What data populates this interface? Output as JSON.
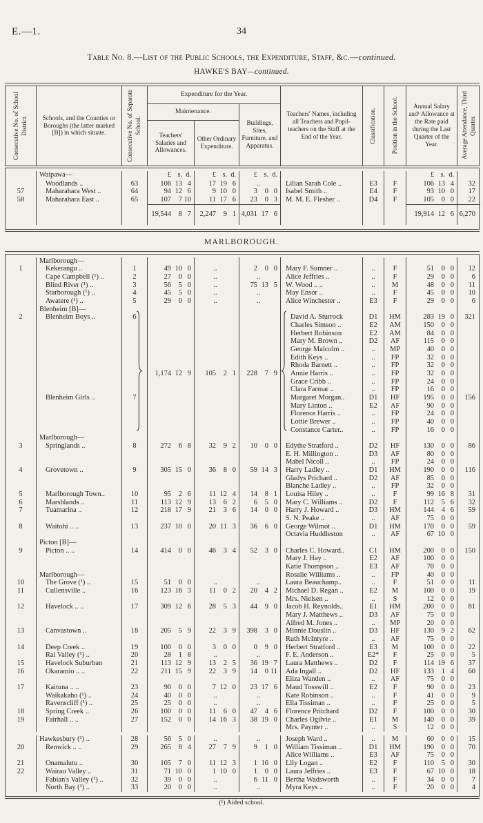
{
  "page": {
    "doc_ref": "E.—1.",
    "page_number": "34",
    "title_main": "Table No. 8.—List of the Public Schools, the Expenditure, Staff, &c.—",
    "title_cont": "continued.",
    "subtitle_region": "HAWKE'S BAY",
    "subtitle_cont": "—continued.",
    "section_title": "MARLBOROUGH.",
    "footnote": "(¹) Aided school."
  },
  "headers": {
    "col_district": "Consecutive No. of School District.",
    "col_school": "Schools, and the Counties or Boroughs (the latter marked [B]) in which situate.",
    "col_school_no": "Consecutive No. of Separate School.",
    "col_expenditure": "Expenditure for the Year.",
    "col_maintenance": "Maintenance.",
    "col_salaries": "Teachers' Salaries and Allowances.",
    "col_other": "Other Ordinary Expenditure.",
    "col_buildings": "Buildings, Sites, Furniture, and Apparatus.",
    "col_teachers": "Teachers' Names, including all Teachers and Pupil-teachers on the Staff at the End of the Year.",
    "col_classification": "Classification.",
    "col_position": "Position in the School.",
    "col_salary": "Annual Salary and¹ Allowance at the Rate paid during the Last Quarter of the Year.",
    "col_attendance": "Average Attendance, Third Quarter."
  },
  "hawkes_bay": {
    "rows": [
      [
        "",
        "Waipawa—",
        "",
        "£ s. d.",
        "£ s. d.",
        "£ s. d.",
        "",
        "",
        "",
        "£ s. d.",
        "",
        "mh g"
      ],
      [
        "",
        "Woodlands ..",
        "63",
        "106 13 4",
        "17 19 6",
        "..",
        "Lilian Sarah Cole ..",
        "E3",
        "F",
        "106 13 4",
        "32",
        ""
      ],
      [
        "57",
        "Maharahara West ..",
        "64",
        "94 12 6",
        "9 10 0",
        "3 0 0",
        "Isabel Smith ..",
        "E4",
        "F",
        "93 10 0",
        "17",
        ""
      ],
      [
        "58",
        "Maharahara East ..",
        "65",
        "107 7 10",
        "11 17 6",
        "23 0 3",
        "M. M. E. Flesher ..",
        "D4",
        "F",
        "105 0 0",
        "22",
        ""
      ],
      [
        "",
        "",
        "",
        "19,544 8 7",
        "2,247 9 1",
        "4,031 17 6",
        "",
        "",
        "",
        "19,914 12 6",
        "6,270",
        "t"
      ]
    ]
  },
  "marlborough": {
    "rows": [
      [
        "",
        "Marlborough—",
        "",
        "",
        "",
        "",
        "",
        "",
        "",
        "",
        "",
        "g"
      ],
      [
        "1",
        "Kekerangu ..",
        "1",
        "49 10 0",
        "..",
        "2 0 0",
        "Mary F. Sumner ..",
        "..",
        "F",
        "51 0 0",
        "12",
        ""
      ],
      [
        "",
        "Cape Campbell (¹) ..",
        "2",
        "27 0 0",
        "..",
        "..",
        "Alice Jeffries ..",
        "..",
        "F",
        "29 0 0",
        "6",
        ""
      ],
      [
        "",
        "Blind River (¹) ..",
        "3",
        "56 5 0",
        "..",
        "75 13 5",
        "W. Wood .. ..",
        "..",
        "M",
        "48 0 0",
        "11",
        ""
      ],
      [
        "",
        "Starborough (¹) ..",
        "4",
        "45 5 0",
        "..",
        "..",
        "May Ensor ..",
        "..",
        "F",
        "45 0 0",
        "10",
        ""
      ],
      [
        "",
        "Awatere (¹) ..",
        "5",
        "29 0 0",
        "..",
        "..",
        "Alice Winchester ..",
        "E3",
        "F",
        "29 0 0",
        "6",
        ""
      ],
      [
        "",
        "Blenheim [B]—",
        "",
        "",
        "",
        "",
        "",
        "",
        "",
        "",
        "",
        "g"
      ],
      [
        "2",
        "Blenheim Boys ..",
        "6",
        "",
        "",
        "",
        "David A. Sturrock",
        "D1",
        "HM",
        "283 19 0",
        "321",
        "b"
      ],
      [
        "",
        "",
        "",
        "",
        "",
        "",
        "Charles Simson ..",
        "E2",
        "AM",
        "150 0 0",
        "",
        "b"
      ],
      [
        "",
        "",
        "",
        "",
        "",
        "",
        "Herbert Robinson",
        "E2",
        "AM",
        "84 0 0",
        "",
        "b"
      ],
      [
        "",
        "",
        "",
        "",
        "",
        "",
        "Mary M. Brown ..",
        "D2",
        "AF",
        "115 0 0",
        "",
        "b"
      ],
      [
        "",
        "",
        "",
        "",
        "",
        "",
        "George Malcolm ..",
        "..",
        "MP",
        "40 0 0",
        "",
        "b"
      ],
      [
        "",
        "",
        "",
        "",
        "",
        "",
        "Edith Keys ..",
        "..",
        "FP",
        "32 0 0",
        "",
        "b"
      ],
      [
        "",
        "",
        "",
        "",
        "",
        "",
        "Rhoda Barnett ..",
        "..",
        "FP",
        "32 0 0",
        "",
        "b"
      ],
      [
        "",
        "",
        "",
        "1,174 12 9",
        "105 2 1",
        "228 7 9",
        "Annie Harris ..",
        "..",
        "FP",
        "32 0 0",
        "",
        "b"
      ],
      [
        "",
        "",
        "",
        "",
        "",
        "",
        "Grace Cribb ..",
        "..",
        "FP",
        "24 0 0",
        "",
        "b"
      ],
      [
        "",
        "",
        "",
        "",
        "",
        "",
        "Clara Farmar ..",
        "..",
        "FP",
        "16 0 0",
        "",
        "b"
      ],
      [
        "",
        "Blenheim Girls ..",
        "7",
        "",
        "",
        "",
        "Margaret Morgan..",
        "D1",
        "HF",
        "195 0 0",
        "156",
        "b"
      ],
      [
        "",
        "",
        "",
        "",
        "",
        "",
        "Mary Linton ..",
        "E2",
        "AF",
        "90 0 0",
        "",
        "b"
      ],
      [
        "",
        "",
        "",
        "",
        "",
        "",
        "Florence Harris ..",
        "..",
        "FP",
        "24 0 0",
        "",
        "b"
      ],
      [
        "",
        "",
        "",
        "",
        "",
        "",
        "Lottie Brewer ..",
        "..",
        "FP",
        "40 0 0",
        "",
        "b"
      ],
      [
        "",
        "",
        "",
        "",
        "",
        "",
        "Constance Carter..",
        "..",
        "FP",
        "16 0 0",
        "",
        "b"
      ],
      [
        "",
        "Marlborough—",
        "",
        "",
        "",
        "",
        "",
        "",
        "",
        "",
        "",
        "g"
      ],
      [
        "3",
        "Springlands ..",
        "8",
        "272 6 8",
        "32 9 2",
        "10 0 0",
        "Edythe Stratford ..",
        "D2",
        "HF",
        "130 0 0",
        "86",
        ""
      ],
      [
        "",
        "",
        "",
        "",
        "",
        "",
        "E. H. Millington ..",
        "D3",
        "AF",
        "80 0 0",
        "",
        ""
      ],
      [
        "",
        "",
        "",
        "",
        "",
        "",
        "Mabel Nicoll ..",
        "..",
        "FP",
        "24 0 0",
        "",
        ""
      ],
      [
        "4",
        "Grovetown ..",
        "9",
        "305 15 0",
        "36 8 0",
        "59 14 3",
        "Harry Ladley ..",
        "D1",
        "HM",
        "190 0 0",
        "116",
        ""
      ],
      [
        "",
        "",
        "",
        "",
        "",
        "",
        "Gladys Prichard ..",
        "D2",
        "AF",
        "85 0 0",
        "",
        ""
      ],
      [
        "",
        "",
        "",
        "",
        "",
        "",
        "Blanche Ladley ..",
        "..",
        "FP",
        "32 0 0",
        "",
        ""
      ],
      [
        "5",
        "Marlborough Town..",
        "10",
        "95 2 6",
        "11 12 4",
        "14 8 1",
        "Louisa Hiley ..",
        "..",
        "F",
        "99 16 8",
        "31",
        ""
      ],
      [
        "6",
        "Marshlands ..",
        "11",
        "113 12 9",
        "13 6 2",
        "6 5 0",
        "Mary C. Williams ..",
        "D2",
        "F",
        "112 5 6",
        "32",
        ""
      ],
      [
        "7",
        "Tuamarina ..",
        "12",
        "218 17 9",
        "21 3 6",
        "14 0 0",
        "Harry J. Howard ..",
        "D3",
        "HM",
        "144 4 6",
        "59",
        ""
      ],
      [
        "",
        "",
        "",
        "",
        "",
        "",
        "S. N. Peake ..",
        "..",
        "AF",
        "75 0 0",
        "",
        ""
      ],
      [
        "8",
        "Waitohi .. ..",
        "13",
        "237 10 0",
        "20 11 3",
        "36 6 0",
        "George Wilmot ..",
        "D1",
        "HM",
        "170 0 0",
        "59",
        ""
      ],
      [
        "",
        "",
        "",
        "",
        "",
        "",
        "Octavia Huddleston",
        "..",
        "AF",
        "67 10 0",
        "",
        ""
      ],
      [
        "",
        "Picton [B]—",
        "",
        "",
        "",
        "",
        "",
        "",
        "",
        "",
        "",
        "g"
      ],
      [
        "9",
        "Picton .. ..",
        "14",
        "414 0 0",
        "46 3 4",
        "52 3 0",
        "Charles C. Howard..",
        "C1",
        "HM",
        "200 0 0",
        "150",
        ""
      ],
      [
        "",
        "",
        "",
        "",
        "",
        "",
        "Mary J. Hay ..",
        "E2",
        "AF",
        "100 0 0",
        "",
        ""
      ],
      [
        "",
        "",
        "",
        "",
        "",
        "",
        "Katie Thompson ..",
        "E3",
        "AF",
        "70 0 0",
        "",
        ""
      ],
      [
        "",
        "Marlborough—",
        "",
        "",
        "",
        "",
        "Rosalie Williams ..",
        "..",
        "FP",
        "40 0 0",
        "",
        "g"
      ],
      [
        "10",
        "The Grove (¹) ..",
        "15",
        "51 0 0",
        "..",
        "..",
        "Laura Beauchamp..",
        "..",
        "F",
        "51 0 0",
        "11",
        ""
      ],
      [
        "11",
        "Cullensville ..",
        "16",
        "123 16 3",
        "11 0 2",
        "20 4 2",
        "Michael D. Regan ..",
        "E2",
        "M",
        "100 0 0",
        "19",
        ""
      ],
      [
        "",
        "",
        "",
        "",
        "",
        "",
        "Mrs. Nielsen ..",
        "..",
        "S",
        "12 0 0",
        "",
        ""
      ],
      [
        "12",
        "Havelock .. ..",
        "17",
        "309 12 6",
        "28 5 3",
        "44 9 0",
        "Jacob H. Reynolds..",
        "E1",
        "HM",
        "200 0 0",
        "81",
        ""
      ],
      [
        "",
        "",
        "",
        "",
        "",
        "",
        "Mary J. Matthews ..",
        "D3",
        "AF",
        "75 0 0",
        "",
        ""
      ],
      [
        "",
        "",
        "",
        "",
        "",
        "",
        "Alfred M. Jones ..",
        "..",
        "MP",
        "20 0 0",
        "",
        ""
      ],
      [
        "13",
        "Canvastown ..",
        "18",
        "205 5 9",
        "22 3 9",
        "398 3 0",
        "Minnie Douslin ..",
        "D3",
        "HF",
        "130 9 2",
        "62",
        ""
      ],
      [
        "",
        "",
        "",
        "",
        "",
        "",
        "Ruth McIntyre ..",
        "..",
        "AF",
        "75 0 0",
        "",
        ""
      ],
      [
        "14",
        "Deep Creek ..",
        "19",
        "100 0 0",
        "3 0 0",
        "0 9 0",
        "Herbert Stratford ..",
        "E3",
        "M",
        "100 0 0",
        "22",
        ""
      ],
      [
        "",
        "Rai Valley (¹) ..",
        "20",
        "28 1 8",
        "..",
        "..",
        "F. E. Anderson ..",
        "E2*",
        "F",
        "25 0 0",
        "5",
        ""
      ],
      [
        "15",
        "Havelock Suburban",
        "21",
        "113 12 9",
        "13 2 5",
        "36 19 7",
        "Laura Matthews ..",
        "D2",
        "F",
        "114 19 6",
        "37",
        ""
      ],
      [
        "16",
        "Okaramio .. ..",
        "22",
        "211 15 9",
        "22 3 9",
        "14 0 11",
        "Ada Ingall ..",
        "D2",
        "HF",
        "133 1 4",
        "60",
        ""
      ],
      [
        "",
        "",
        "",
        "",
        "",
        "",
        "Eliza Wanden ..",
        "..",
        "AF",
        "75 0 0",
        "",
        ""
      ],
      [
        "17",
        "Kaituna .. ..",
        "23",
        "90 0 0",
        "7 12 0",
        "23 17 6",
        "Maud Tosswill ..",
        "E2",
        "F",
        "90 0 0",
        "23",
        ""
      ],
      [
        "",
        "Waikakaho (¹) ..",
        "24",
        "40 0 0",
        "..",
        "..",
        "Kate Robinson ..",
        "..",
        "F",
        "41 0 0",
        "9",
        ""
      ],
      [
        "",
        "Ravenscliff (¹) ..",
        "25",
        "25 0 0",
        "..",
        "..",
        "Ella Tissiman ..",
        "..",
        "F",
        "25 0 0",
        "5",
        ""
      ],
      [
        "18",
        "Spring Creek ..",
        "26",
        "100 0 0",
        "11 6 0",
        "47 4 6",
        "Florence Pritchard",
        "D2",
        "F",
        "100 0 0",
        "30",
        ""
      ],
      [
        "19",
        "Fairhall .. ..",
        "27",
        "152 0 0",
        "14 16 3",
        "38 19 0",
        "Charles Ogilvie ..",
        "E1",
        "M",
        "140 0 0",
        "39",
        ""
      ],
      [
        "",
        "",
        "",
        "",
        "",
        "",
        "Mrs. Paynter ..",
        "..",
        "S",
        "12 0 0",
        "",
        ""
      ],
      [
        "",
        "Hawkesbury (¹) ..",
        "28",
        "56 5 0",
        "..",
        "..",
        "Joseph Ward ..",
        "..",
        "M",
        "60 0 0",
        "15",
        "gap"
      ],
      [
        "20",
        "Renwick .. ..",
        "29",
        "265 8 4",
        "27 7 9",
        "9 1 0",
        "William Tissiman ..",
        "D1",
        "HM",
        "190 0 0",
        "70",
        ""
      ],
      [
        "",
        "",
        "",
        "",
        "",
        "",
        "Alice Williams ..",
        "E3",
        "AF",
        "75 0 0",
        "",
        ""
      ],
      [
        "21",
        "Onamalutu ..",
        "30",
        "105 7 0",
        "11 12 3",
        "1 16 0",
        "Lily Logan ..",
        "E2",
        "F",
        "110 5 0",
        "30",
        ""
      ],
      [
        "22",
        "Wairau Valley ..",
        "31",
        "71 10 0",
        "1 10 0",
        "1 0 0",
        "Laura Jeffries ..",
        "E3",
        "F",
        "67 10 0",
        "18",
        ""
      ],
      [
        "",
        "Fabian's Valley (¹) ..",
        "32",
        "39 0 0",
        "..",
        "6 11 0",
        "Bertha Wadsworth",
        "..",
        "F",
        "34 0 0",
        "7",
        ""
      ],
      [
        "",
        "North Bay (¹) ..",
        "33",
        "20 0 0",
        "..",
        "..",
        "Myra Keys ..",
        "..",
        "F",
        "20 0 0",
        "4",
        ""
      ]
    ],
    "brace_start_row": 7,
    "brace_end_row": 21
  }
}
